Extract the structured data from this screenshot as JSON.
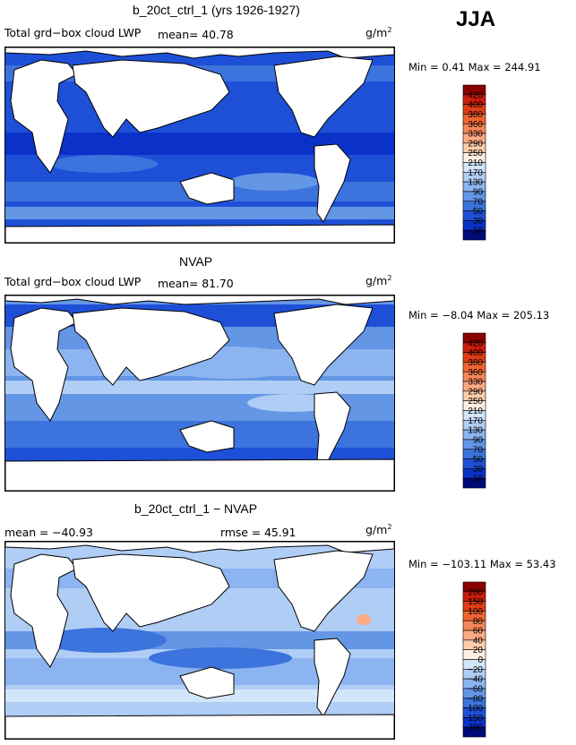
{
  "season": "JJA",
  "panels": [
    {
      "title": "b_20ct_ctrl_1 (yrs 1926-1927)",
      "left_text": "Total grd−box cloud LWP",
      "mean_text": "mean=   40.78",
      "rmse_text": "",
      "units": "g/m",
      "units_sup": "2",
      "minmax": "Min =   0.41  Max = 244.91",
      "colorbar_levels": [
        "420",
        "400",
        "380",
        "360",
        "330",
        "290",
        "250",
        "210",
        "170",
        "130",
        "90",
        "70",
        "50",
        "30",
        "10"
      ],
      "colorbar_colors": [
        "#8b0000",
        "#c81e0a",
        "#e03c14",
        "#f06432",
        "#f5875a",
        "#fbaa82",
        "#fdcdae",
        "#fef0e1",
        "#d2e6fa",
        "#afcdf5",
        "#8cb4f0",
        "#6496e6",
        "#3c73dc",
        "#1e50d7",
        "#0a32c8",
        "#000a78"
      ]
    },
    {
      "title": "NVAP",
      "left_text": "Total grd−box cloud LWP",
      "mean_text": "mean=   81.70",
      "rmse_text": "",
      "units": "g/m",
      "units_sup": "2",
      "minmax": "Min =  −8.04  Max = 205.13",
      "colorbar_levels": [
        "420",
        "400",
        "380",
        "360",
        "330",
        "290",
        "250",
        "210",
        "170",
        "130",
        "90",
        "70",
        "50",
        "30",
        "10"
      ],
      "colorbar_colors": [
        "#8b0000",
        "#c81e0a",
        "#e03c14",
        "#f06432",
        "#f5875a",
        "#fbaa82",
        "#fdcdae",
        "#fef0e1",
        "#d2e6fa",
        "#afcdf5",
        "#8cb4f0",
        "#6496e6",
        "#3c73dc",
        "#1e50d7",
        "#0a32c8",
        "#000a78"
      ]
    },
    {
      "title": "b_20ct_ctrl_1 − NVAP",
      "left_text": "mean = −40.93",
      "mean_text": "",
      "rmse_text": "rmse =   45.91",
      "units": "g/m",
      "units_sup": "2",
      "minmax": "Min = −103.11  Max =  53.43",
      "colorbar_levels": [
        "200",
        "150",
        "100",
        "80",
        "60",
        "40",
        "20",
        "0",
        "−20",
        "−40",
        "−60",
        "−80",
        "−100",
        "−150",
        "−200"
      ],
      "colorbar_colors": [
        "#8b0000",
        "#c81e0a",
        "#e03c14",
        "#f06432",
        "#f5875a",
        "#fbaa82",
        "#fdcdae",
        "#fef0e1",
        "#d2e6fa",
        "#afcdf5",
        "#8cb4f0",
        "#6496e6",
        "#3c73dc",
        "#1e50d7",
        "#0a32c8",
        "#000a78"
      ]
    }
  ],
  "chart_data": [
    {
      "type": "heatmap",
      "title": "b_20ct_ctrl_1 (yrs 1926-1927)",
      "variable": "Total grd-box cloud LWP",
      "units": "g/m2",
      "mean": 40.78,
      "min": 0.41,
      "max": 244.91,
      "levels": [
        10,
        30,
        50,
        70,
        90,
        130,
        170,
        210,
        250,
        290,
        330,
        360,
        380,
        400,
        420
      ],
      "ocean_dominant_range": [
        10,
        90
      ]
    },
    {
      "type": "heatmap",
      "title": "NVAP",
      "variable": "Total grd-box cloud LWP",
      "units": "g/m2",
      "mean": 81.7,
      "min": -8.04,
      "max": 205.13,
      "levels": [
        10,
        30,
        50,
        70,
        90,
        130,
        170,
        210,
        250,
        290,
        330,
        360,
        380,
        400,
        420
      ],
      "ocean_dominant_range": [
        50,
        170
      ]
    },
    {
      "type": "heatmap",
      "title": "b_20ct_ctrl_1 - NVAP",
      "units": "g/m2",
      "mean": -40.93,
      "rmse": 45.91,
      "min": -103.11,
      "max": 53.43,
      "levels": [
        -200,
        -150,
        -100,
        -80,
        -60,
        -40,
        -20,
        0,
        20,
        40,
        60,
        80,
        100,
        150,
        200
      ],
      "ocean_dominant_range": [
        -80,
        0
      ]
    }
  ]
}
